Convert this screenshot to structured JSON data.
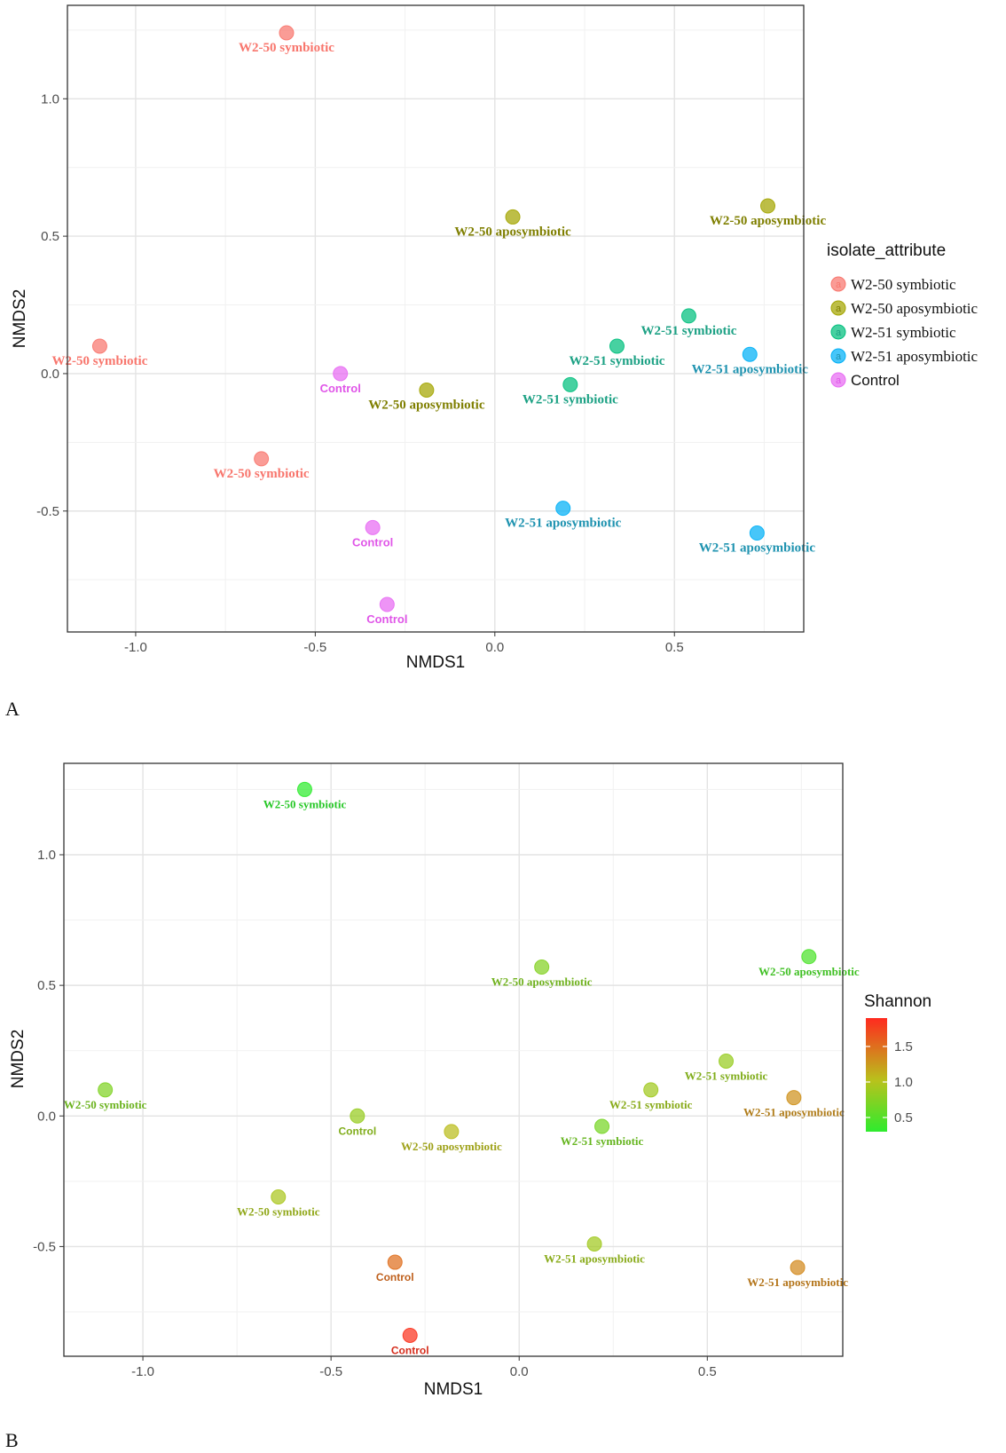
{
  "colors": {
    "W2-50 symbiotic": "#F8766D",
    "W2-50 aposymbiotic": "#A3A500",
    "W2-51 symbiotic": "#00BF7D",
    "W2-51 aposymbiotic": "#00B0F6",
    "Control": "#E76BF3",
    "label_W2-50 symbiotic": "#F8766D",
    "label_W2-50 aposymbiotic": "#7F7F00",
    "label_W2-51 symbiotic": "#1CA184",
    "label_W2-51 aposymbiotic": "#1F93B0",
    "label_Control": "#E056E8",
    "shannon_low": "#2EEB2E",
    "shannon_mid": "#B8C21C",
    "shannon_high": "#FF2A1F"
  },
  "chart_data": [
    {
      "panel": "A",
      "type": "scatter",
      "xlabel": "NMDS1",
      "ylabel": "NMDS2",
      "xlim": [
        -1.19,
        0.86
      ],
      "ylim": [
        -0.94,
        1.34
      ],
      "xticks": [
        -1.0,
        -0.5,
        0.0,
        0.5
      ],
      "xtick_labels": [
        "-1.0",
        "-0.5",
        "0.0",
        "0.5"
      ],
      "yticks": [
        -0.5,
        0.0,
        0.5,
        1.0
      ],
      "ytick_labels": [
        "-0.5",
        "0.0",
        "0.5",
        "1.0"
      ],
      "legend": {
        "title": "isolate_attribute",
        "position": "right",
        "entries": [
          "W2-50 symbiotic",
          "W2-50 aposymbiotic",
          "W2-51 symbiotic",
          "W2-51 aposymbiotic",
          "Control"
        ],
        "key_glyph": "a"
      },
      "points": [
        {
          "x": -0.58,
          "y": 1.24,
          "group": "W2-50 symbiotic",
          "label": "W2-50 symbiotic"
        },
        {
          "x": -1.1,
          "y": 0.1,
          "group": "W2-50 symbiotic",
          "label": "W2-50 symbiotic"
        },
        {
          "x": -0.65,
          "y": -0.31,
          "group": "W2-50 symbiotic",
          "label": "W2-50 symbiotic"
        },
        {
          "x": 0.05,
          "y": 0.57,
          "group": "W2-50 aposymbiotic",
          "label": "W2-50 aposymbiotic"
        },
        {
          "x": 0.76,
          "y": 0.61,
          "group": "W2-50 aposymbiotic",
          "label": "W2-50 aposymbiotic"
        },
        {
          "x": -0.19,
          "y": -0.06,
          "group": "W2-50 aposymbiotic",
          "label": "W2-50 aposymbiotic"
        },
        {
          "x": 0.54,
          "y": 0.21,
          "group": "W2-51 symbiotic",
          "label": "W2-51 symbiotic"
        },
        {
          "x": 0.34,
          "y": 0.1,
          "group": "W2-51 symbiotic",
          "label": "W2-51 symbiotic"
        },
        {
          "x": 0.21,
          "y": -0.04,
          "group": "W2-51 symbiotic",
          "label": "W2-51 symbiotic"
        },
        {
          "x": 0.71,
          "y": 0.07,
          "group": "W2-51 aposymbiotic",
          "label": "W2-51 aposymbiotic"
        },
        {
          "x": 0.19,
          "y": -0.49,
          "group": "W2-51 aposymbiotic",
          "label": "W2-51 aposymbiotic"
        },
        {
          "x": 0.73,
          "y": -0.58,
          "group": "W2-51 aposymbiotic",
          "label": "W2-51 aposymbiotic"
        },
        {
          "x": -0.43,
          "y": 0.0,
          "group": "Control",
          "label": "Control"
        },
        {
          "x": -0.34,
          "y": -0.56,
          "group": "Control",
          "label": "Control"
        },
        {
          "x": -0.3,
          "y": -0.84,
          "group": "Control",
          "label": "Control"
        }
      ]
    },
    {
      "panel": "B",
      "type": "scatter",
      "xlabel": "NMDS1",
      "ylabel": "NMDS2",
      "xlim": [
        -1.21,
        0.86
      ],
      "ylim": [
        -0.92,
        1.35
      ],
      "xticks": [
        -1.0,
        -0.5,
        0.0,
        0.5
      ],
      "xtick_labels": [
        "-1.0",
        "-0.5",
        "0.0",
        "0.5"
      ],
      "yticks": [
        -0.5,
        0.0,
        0.5,
        1.0
      ],
      "ytick_labels": [
        "-0.5",
        "0.0",
        "0.5",
        "1.0"
      ],
      "colorbar": {
        "title": "Shannon",
        "position": "right",
        "range": [
          0.3,
          1.9
        ],
        "ticks": [
          0.5,
          1.0,
          1.5
        ],
        "tick_labels": [
          "0.5",
          "1.0",
          "1.5"
        ]
      },
      "points": [
        {
          "x": -0.57,
          "y": 1.25,
          "shannon": 0.3,
          "label": "W2-50 symbiotic"
        },
        {
          "x": -1.1,
          "y": 0.1,
          "shannon": 0.72,
          "label": "W2-50 symbiotic"
        },
        {
          "x": -0.64,
          "y": -0.31,
          "shannon": 0.95,
          "label": "W2-50 symbiotic"
        },
        {
          "x": 0.06,
          "y": 0.57,
          "shannon": 0.75,
          "label": "W2-50 aposymbiotic"
        },
        {
          "x": 0.77,
          "y": 0.61,
          "shannon": 0.45,
          "label": "W2-50 aposymbiotic"
        },
        {
          "x": -0.18,
          "y": -0.06,
          "shannon": 1.05,
          "label": "W2-50 aposymbiotic"
        },
        {
          "x": 0.55,
          "y": 0.21,
          "shannon": 0.85,
          "label": "W2-51 symbiotic"
        },
        {
          "x": 0.35,
          "y": 0.1,
          "shannon": 0.9,
          "label": "W2-51 symbiotic"
        },
        {
          "x": 0.22,
          "y": -0.04,
          "shannon": 0.68,
          "label": "W2-51 symbiotic"
        },
        {
          "x": 0.73,
          "y": 0.07,
          "shannon": 1.3,
          "label": "W2-51 aposymbiotic"
        },
        {
          "x": 0.2,
          "y": -0.49,
          "shannon": 0.9,
          "label": "W2-51 aposymbiotic"
        },
        {
          "x": 0.74,
          "y": -0.58,
          "shannon": 1.35,
          "label": "W2-51 aposymbiotic"
        },
        {
          "x": -0.43,
          "y": 0.0,
          "shannon": 0.85,
          "label": "Control"
        },
        {
          "x": -0.33,
          "y": -0.56,
          "shannon": 1.5,
          "label": "Control"
        },
        {
          "x": -0.29,
          "y": -0.84,
          "shannon": 1.85,
          "label": "Control"
        }
      ]
    }
  ],
  "panel_letters": [
    "A",
    "B"
  ]
}
